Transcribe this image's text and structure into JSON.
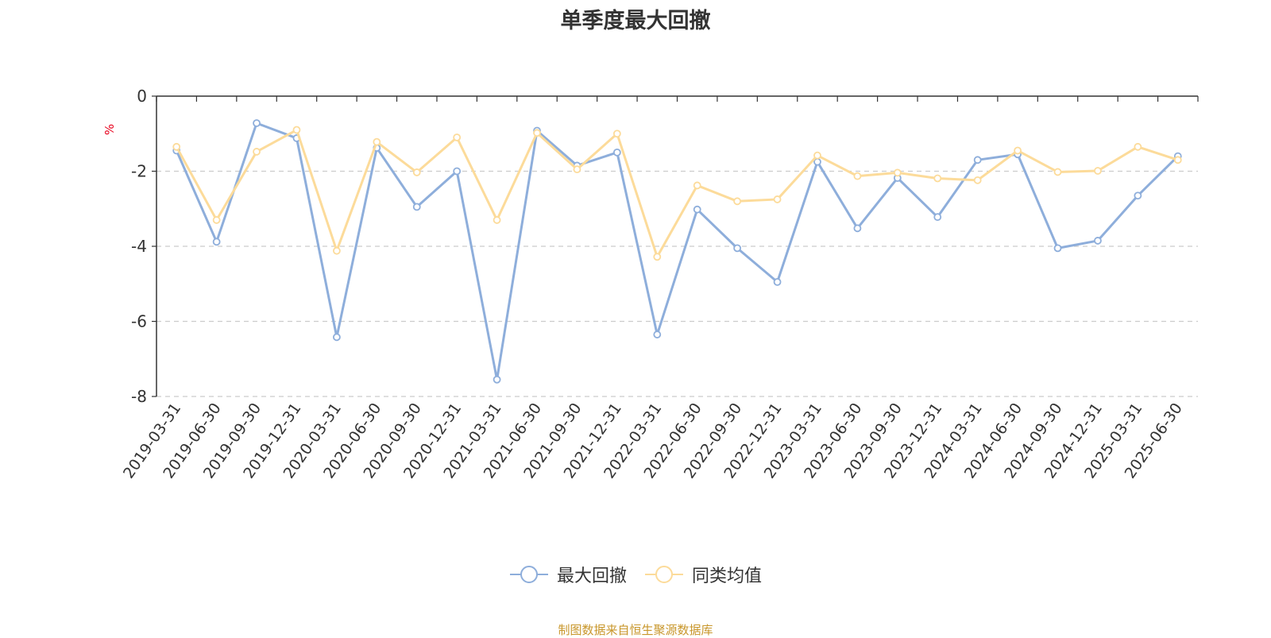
{
  "chart_data": {
    "type": "line",
    "title": "单季度最大回撤",
    "ylabel": "%",
    "ylim": [
      -8,
      0
    ],
    "yticks": [
      0,
      -2,
      -4,
      -6,
      -8
    ],
    "grid": true,
    "legend_position": "bottom-center",
    "categories": [
      "2019-03-31",
      "2019-06-30",
      "2019-09-30",
      "2019-12-31",
      "2020-03-31",
      "2020-06-30",
      "2020-09-30",
      "2020-12-31",
      "2021-03-31",
      "2021-06-30",
      "2021-09-30",
      "2021-12-31",
      "2022-03-31",
      "2022-06-30",
      "2022-09-30",
      "2022-12-31",
      "2023-03-31",
      "2023-06-30",
      "2023-09-30",
      "2023-12-31",
      "2024-03-31",
      "2024-06-30",
      "2024-09-30",
      "2024-12-31",
      "2025-03-31",
      "2025-06-30"
    ],
    "series": [
      {
        "name": "最大回撤",
        "color": "#8eaedb",
        "values": [
          -1.45,
          -3.88,
          -0.72,
          -1.12,
          -6.42,
          -1.38,
          -2.95,
          -2.0,
          -7.55,
          -0.92,
          -1.85,
          -1.5,
          -6.35,
          -3.02,
          -4.05,
          -4.95,
          -1.75,
          -3.52,
          -2.18,
          -3.22,
          -1.7,
          -1.55,
          -4.05,
          -3.85,
          -2.65,
          -1.6
        ]
      },
      {
        "name": "同类均值",
        "color": "#fcdb9a",
        "values": [
          -1.35,
          -3.3,
          -1.48,
          -0.9,
          -4.12,
          -1.22,
          -2.03,
          -1.1,
          -3.3,
          -0.98,
          -1.95,
          -1.0,
          -4.28,
          -2.38,
          -2.8,
          -2.75,
          -1.58,
          -2.13,
          -2.04,
          -2.19,
          -2.24,
          -1.45,
          -2.02,
          -1.99,
          -1.35,
          -1.7
        ]
      }
    ]
  },
  "source_note": "制图数据来自恒生聚源数据库",
  "colors": {
    "axis": "#333333",
    "grid": "#cccccc",
    "ylabel": "#e8001c",
    "source_note": "#c8962a"
  }
}
